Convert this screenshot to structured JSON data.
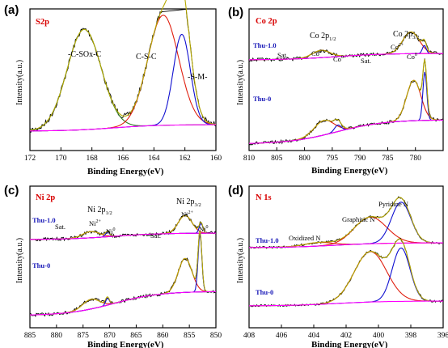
{
  "chart_data": [
    {
      "type": "line",
      "panel": "(a)",
      "title": "S2p",
      "xlabel": "Binding Energy(eV)",
      "ylabel": "Intensity(a.u.)",
      "xlim": [
        172,
        160
      ],
      "xticks": [
        172,
        170,
        168,
        166,
        164,
        162,
        160
      ],
      "annotations": [
        {
          "text": "-C-SOx-C",
          "x": 168.5
        },
        {
          "text": "C-S-C",
          "x": 163.4
        },
        {
          "text": "-S-M-",
          "x": 161.4
        }
      ],
      "peaks": [
        {
          "name": "-C-SOx-C",
          "center": 168.5,
          "height": 0.62,
          "width": 1.1,
          "color": "#2e7d1f"
        },
        {
          "name": "C-S-C",
          "center": 163.4,
          "height": 0.68,
          "width": 1.0,
          "color": "#e02010"
        },
        {
          "name": "-S-M-",
          "center": 162.2,
          "height": 0.56,
          "width": 0.55,
          "color": "#1010d0"
        }
      ],
      "colors": {
        "raw": "#000000",
        "envelope": "#b5a800",
        "background": "#ff00ff"
      }
    },
    {
      "type": "line",
      "panel": "(b)",
      "title": "Co 2p",
      "xlabel": "Binding Energy(eV)",
      "ylabel": "Intensity(a.u.)",
      "xlim": [
        810,
        775
      ],
      "xticks": [
        810,
        805,
        800,
        795,
        790,
        785,
        780
      ],
      "series_labels": [
        "Thu-1.0",
        "Thu-0"
      ],
      "annotations": [
        "Sat.",
        "Co 2p1/2",
        "Co2+",
        "Co0",
        "Sat.",
        "Co 2p3/2",
        "Co2+",
        "Co0"
      ],
      "peaks_top": [
        {
          "center": 797,
          "height": 0.09,
          "width": 1.6,
          "color": "#e02010"
        },
        {
          "center": 780.8,
          "height": 0.27,
          "width": 1.5,
          "color": "#e02010"
        },
        {
          "center": 778.4,
          "height": 0.1,
          "width": 0.35,
          "color": "#1010d0"
        }
      ],
      "peaks_bottom": [
        {
          "center": 796.5,
          "height": 0.18,
          "width": 1.8,
          "color": "#e02010"
        },
        {
          "center": 794.0,
          "height": 0.08,
          "width": 0.6,
          "color": "#1010d0"
        },
        {
          "center": 780.3,
          "height": 0.5,
          "width": 1.3,
          "color": "#e02010"
        },
        {
          "center": 778.3,
          "height": 0.6,
          "width": 0.35,
          "color": "#1010d0"
        }
      ]
    },
    {
      "type": "line",
      "panel": "(c)",
      "title": "Ni 2p",
      "xlabel": "Binding Energy(eV)",
      "ylabel": "Intensity(a.u.)",
      "xlim": [
        885,
        850
      ],
      "xticks": [
        885,
        880,
        875,
        870,
        865,
        860,
        855,
        850
      ],
      "series_labels": [
        "Thu-1.0",
        "Thu-0"
      ],
      "annotations": [
        "Sat.",
        "Ni 2p1/2",
        "Ni2+",
        "Ni0",
        "Sat.",
        "Ni 2p3/2",
        "Ni2+",
        "Ni0"
      ],
      "peaks_top": [
        {
          "center": 873.5,
          "height": 0.07,
          "width": 1.6,
          "color": "#e02010"
        },
        {
          "center": 870.4,
          "height": 0.05,
          "width": 0.4,
          "color": "#1010d0"
        },
        {
          "center": 855.8,
          "height": 0.2,
          "width": 1.3,
          "color": "#e02010"
        },
        {
          "center": 852.8,
          "height": 0.11,
          "width": 0.35,
          "color": "#1010d0"
        }
      ],
      "peaks_bottom": [
        {
          "center": 873.5,
          "height": 0.1,
          "width": 1.6,
          "color": "#e02010"
        },
        {
          "center": 870.4,
          "height": 0.07,
          "width": 0.35,
          "color": "#1010d0"
        },
        {
          "center": 855.8,
          "height": 0.35,
          "width": 1.3,
          "color": "#e02010"
        },
        {
          "center": 853.0,
          "height": 0.6,
          "width": 0.35,
          "color": "#1010d0"
        }
      ]
    },
    {
      "type": "line",
      "panel": "(d)",
      "title": "N 1s",
      "xlabel": "Binding Energy(eV)",
      "ylabel": "Intensity(a.u.)",
      "xlim": [
        408,
        396
      ],
      "xticks": [
        408,
        406,
        404,
        402,
        400,
        398,
        396
      ],
      "series_labels": [
        "Thu-1.0",
        "Thu-0"
      ],
      "annotations": [
        "Oxidized N",
        "Graphitic N",
        "Pyridine N"
      ],
      "peaks_top": [
        {
          "center": 403.7,
          "height": 0.04,
          "width": 0.9,
          "color": "#e02010"
        },
        {
          "center": 400.5,
          "height": 0.3,
          "width": 1.0,
          "color": "#e02010"
        },
        {
          "center": 398.6,
          "height": 0.46,
          "width": 0.6,
          "color": "#1010d0"
        }
      ],
      "peaks_bottom": [
        {
          "center": 400.5,
          "height": 0.52,
          "width": 1.0,
          "color": "#e02010"
        },
        {
          "center": 398.6,
          "height": 0.55,
          "width": 0.55,
          "color": "#1010d0"
        }
      ]
    }
  ]
}
